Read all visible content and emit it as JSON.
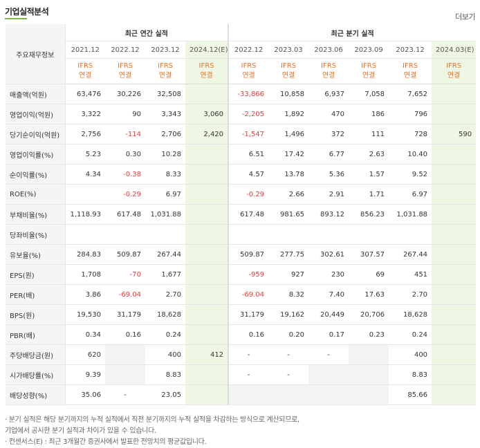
{
  "header": {
    "title": "기업실적분석",
    "more_label": "더보기"
  },
  "table": {
    "corner_label": "주요재무정보",
    "group_annual": "최근 연간 실적",
    "group_quarter": "최근 분기 실적",
    "annual_periods": [
      "2021.12",
      "2022.12",
      "2023.12",
      "2024.12(E)"
    ],
    "quarter_periods": [
      "2022.12",
      "2023.03",
      "2023.06",
      "2023.09",
      "2023.12",
      "2024.03(E)"
    ],
    "standard_top": "IFRS",
    "standard_bottom": "연결",
    "rows": [
      {
        "label": "매출액(억원)",
        "annual": [
          "63,476",
          "30,226",
          "32,508",
          ""
        ],
        "quarter": [
          "-33,866",
          "10,858",
          "6,937",
          "7,058",
          "7,652",
          ""
        ]
      },
      {
        "label": "영업이익(억원)",
        "annual": [
          "3,322",
          "90",
          "3,343",
          "3,060"
        ],
        "quarter": [
          "-2,205",
          "1,892",
          "470",
          "186",
          "796",
          ""
        ]
      },
      {
        "label": "당기순이익(억원)",
        "annual": [
          "2,756",
          "-114",
          "2,706",
          "2,420"
        ],
        "quarter": [
          "-1,547",
          "1,496",
          "372",
          "111",
          "728",
          "590"
        ]
      },
      {
        "label": "영업이익률(%)",
        "annual": [
          "5.23",
          "0.30",
          "10.28",
          ""
        ],
        "quarter": [
          "6.51",
          "17.42",
          "6.77",
          "2.63",
          "10.40",
          ""
        ]
      },
      {
        "label": "순이익률(%)",
        "annual": [
          "4.34",
          "-0.38",
          "8.33",
          ""
        ],
        "quarter": [
          "4.57",
          "13.78",
          "5.36",
          "1.57",
          "9.52",
          ""
        ]
      },
      {
        "label": "ROE(%)",
        "annual": [
          "",
          "-0.29",
          "6.97",
          ""
        ],
        "quarter": [
          "-0.29",
          "2.66",
          "2.91",
          "1.71",
          "6.97",
          ""
        ]
      },
      {
        "label": "부채비율(%)",
        "annual": [
          "1,118.93",
          "617.48",
          "1,031.88",
          ""
        ],
        "quarter": [
          "617.48",
          "981.65",
          "893.12",
          "856.23",
          "1,031.88",
          ""
        ]
      },
      {
        "label": "당좌비율(%)",
        "annual": [
          "",
          "",
          "",
          ""
        ],
        "quarter": [
          "",
          "",
          "",
          "",
          "",
          ""
        ]
      },
      {
        "label": "유보율(%)",
        "annual": [
          "284.83",
          "509.87",
          "267.44",
          ""
        ],
        "quarter": [
          "509.87",
          "277.75",
          "302.61",
          "307.57",
          "267.44",
          ""
        ]
      },
      {
        "label": "EPS(원)",
        "annual": [
          "1,708",
          "-70",
          "1,677",
          ""
        ],
        "quarter": [
          "-959",
          "927",
          "230",
          "69",
          "451",
          ""
        ]
      },
      {
        "label": "PER(배)",
        "annual": [
          "3.86",
          "-69.04",
          "2.70",
          ""
        ],
        "quarter": [
          "-69.04",
          "8.32",
          "7.40",
          "17.63",
          "2.70",
          ""
        ]
      },
      {
        "label": "BPS(원)",
        "annual": [
          "19,530",
          "31,179",
          "18,628",
          ""
        ],
        "quarter": [
          "31,179",
          "19,162",
          "20,449",
          "20,706",
          "18,628",
          ""
        ]
      },
      {
        "label": "PBR(배)",
        "annual": [
          "0.34",
          "0.16",
          "0.24",
          ""
        ],
        "quarter": [
          "0.16",
          "0.20",
          "0.17",
          "0.23",
          "0.24",
          ""
        ]
      },
      {
        "label": "주당배당금(원)",
        "annual": [
          "620",
          "",
          "400",
          "412"
        ],
        "quarter": [
          "-",
          "-",
          "-",
          "",
          "400",
          ""
        ]
      },
      {
        "label": "시가배당률(%)",
        "annual": [
          "9.39",
          "",
          "8.83",
          ""
        ],
        "quarter": [
          "-",
          "-",
          "",
          "",
          "8.83",
          ""
        ]
      },
      {
        "label": "배당성향(%)",
        "annual": [
          "35.06",
          "-",
          "23.05",
          ""
        ],
        "quarter": [
          "",
          "",
          "",
          "",
          "85.66",
          ""
        ]
      }
    ]
  },
  "notes": [
    "· 분기 실적은 해당 분기까지의 누적 실적에서 직전 분기까지의 누적 실적을 차감하는 방식으로 계산되므로,",
    "  기업에서 공시한 분기 실적과 차이가 있을 수 있습니다.",
    "· 컨센서스(E) : 최근 3개월간 증권사에서 발표한 전망치의 평균값입니다."
  ]
}
